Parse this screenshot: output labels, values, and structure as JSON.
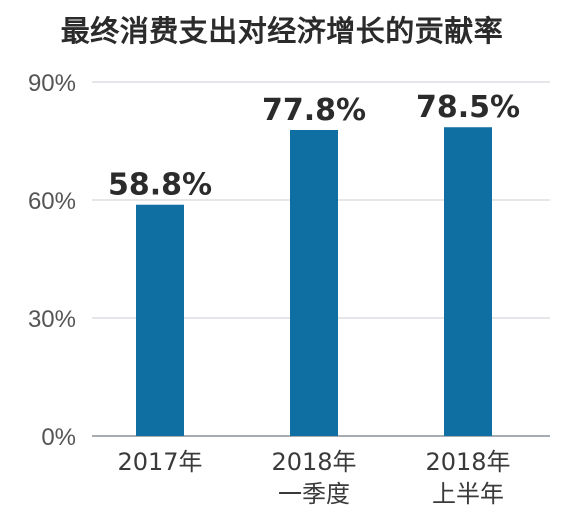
{
  "chart_data": {
    "type": "bar",
    "title": "最终消费支出对经济增长的贡献率",
    "categories": [
      [
        "2017年"
      ],
      [
        "2018年",
        "一季度"
      ],
      [
        "2018年",
        "上半年"
      ]
    ],
    "values": [
      58.8,
      77.8,
      78.5
    ],
    "data_labels": [
      "58.8%",
      "77.8%",
      "78.5%"
    ],
    "ylim": [
      0,
      90
    ],
    "yticks": [
      0,
      30,
      60,
      90
    ],
    "ytick_labels": [
      "0%",
      "30%",
      "60%",
      "90%"
    ],
    "grid": true,
    "bar_color": "#0f6fa3",
    "grid_color": "#c8ced4"
  }
}
